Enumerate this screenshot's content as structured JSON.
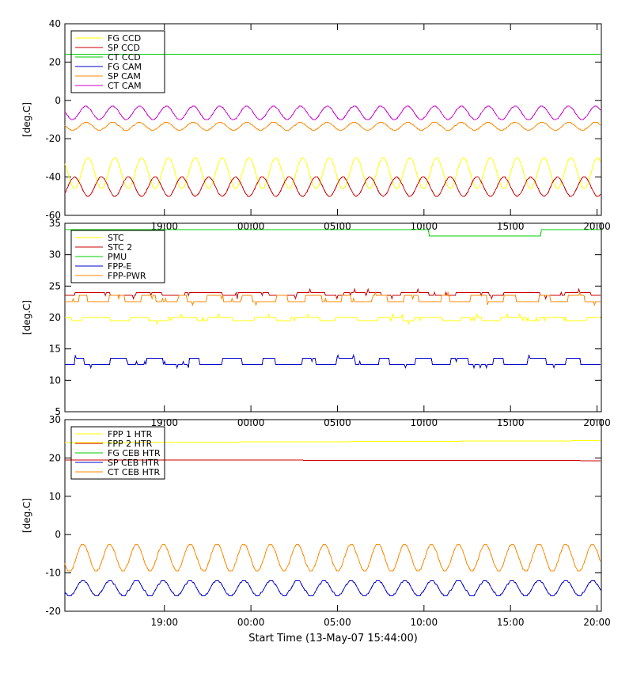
{
  "xlabel": "Start Time (13-May-07 15:44:00)",
  "x_range_hours": [
    -2.5,
    28.5
  ],
  "x_ticks": [
    {
      "h": 3.25,
      "label": "19:00"
    },
    {
      "h": 8.25,
      "label": "00:00"
    },
    {
      "h": 13.25,
      "label": "05:00"
    },
    {
      "h": 18.25,
      "label": "10:00"
    },
    {
      "h": 23.25,
      "label": "15:00"
    },
    {
      "h": 28.25,
      "label": "20:00"
    }
  ],
  "chart_data": [
    {
      "type": "line",
      "ylabel": "[deg.C]",
      "ylim": [
        -60,
        40
      ],
      "yticks": [
        -60,
        -40,
        -20,
        0,
        20,
        40
      ],
      "legend_position": "top-left",
      "series": [
        {
          "name": "FG CCD",
          "color": "#ffff00",
          "kind": "sine",
          "mid": -38,
          "amp": 8,
          "period": 1.55,
          "phase": 0
        },
        {
          "name": "SP CCD",
          "color": "#cc0000",
          "kind": "sine",
          "mid": -45,
          "amp": 5,
          "period": 1.55,
          "phase": 3.14
        },
        {
          "name": "CT CCD",
          "color": "#00cc00",
          "kind": "flat",
          "value": 24
        },
        {
          "name": "FG CAM",
          "color": "#0000cc",
          "kind": "sine",
          "mid": -6.5,
          "amp": 3.5,
          "period": 1.55,
          "phase": 0.5
        },
        {
          "name": "SP CAM",
          "color": "#ff8800",
          "kind": "sine",
          "mid": -13.5,
          "amp": 2,
          "period": 1.55,
          "phase": 0.5
        },
        {
          "name": "CT CAM",
          "color": "#cc00cc",
          "kind": "sine",
          "mid": -6.5,
          "amp": 3.5,
          "period": 1.55,
          "phase": 0.5
        }
      ]
    },
    {
      "type": "line",
      "ylabel": "[deg.C]",
      "ylim": [
        5,
        35
      ],
      "yticks": [
        5,
        10,
        15,
        20,
        25,
        30,
        35
      ],
      "legend_position": "top-left",
      "series": [
        {
          "name": "STC",
          "color": "#ffff00",
          "kind": "step",
          "base": 20,
          "alt": 19.5,
          "period": 2.4
        },
        {
          "name": "STC 2",
          "color": "#cc0000",
          "kind": "step",
          "base": 24,
          "alt": 23.5,
          "period": 3.1
        },
        {
          "name": "PMU",
          "color": "#00cc00",
          "kind": "pmu",
          "value": 34,
          "drop_value": 33,
          "drop_start": 18.5,
          "drop_end": 25
        },
        {
          "name": "FPP-E",
          "color": "#0000cc",
          "kind": "step",
          "base": 12.5,
          "alt": 13.5,
          "period": 2.2
        },
        {
          "name": "FPP-PWR",
          "color": "#ff8800",
          "kind": "step",
          "base": 22.5,
          "alt": 23.5,
          "period": 1.9
        }
      ]
    },
    {
      "type": "line",
      "ylabel": "[deg.C]",
      "ylim": [
        -20,
        30
      ],
      "yticks": [
        -20,
        -10,
        0,
        10,
        20,
        30
      ],
      "legend_position": "top-left",
      "series": [
        {
          "name": "FPP 1 HTR",
          "color": "#ffff00",
          "kind": "drift",
          "start": 24,
          "end": 24.5
        },
        {
          "name": "FPP 2 HTR",
          "color": "#cc0000",
          "kind": "drift",
          "start": 19.5,
          "end": 19.3
        },
        {
          "name": "FG CEB HTR",
          "color": "#00cc00",
          "kind": "sine",
          "mid": -6,
          "amp": 3.5,
          "period": 1.55,
          "phase": 1.2
        },
        {
          "name": "SP CEB HTR",
          "color": "#0000cc",
          "kind": "sine",
          "mid": -14,
          "amp": 2,
          "period": 1.55,
          "phase": 1.2
        },
        {
          "name": "CT CEB HTR",
          "color": "#ff8800",
          "kind": "sine",
          "mid": -6,
          "amp": 3.5,
          "period": 1.55,
          "phase": 1.2
        }
      ]
    }
  ]
}
